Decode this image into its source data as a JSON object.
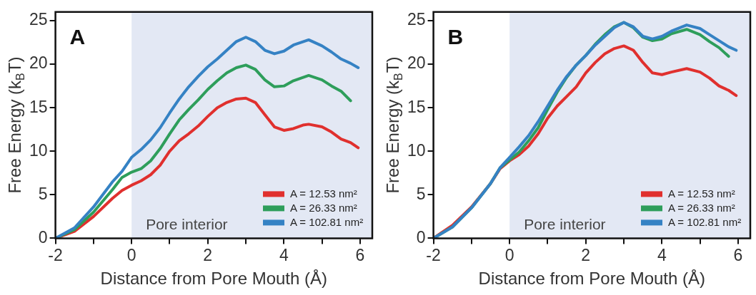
{
  "chart_data": [
    {
      "type": "line",
      "xlabel": "Distance from Pore Mouth (Å)",
      "ylabel": "Free Energy (k$_{B}$T)",
      "annotations": [
        "A"
      ],
      "xlim": [
        -2,
        6.32
      ],
      "ylim": [
        0,
        26
      ],
      "xticks": [
        -2,
        {
          "value": -1,
          "label": null
        },
        0,
        {
          "value": 1,
          "label": null
        },
        2,
        {
          "value": 3,
          "label": null
        },
        4,
        {
          "value": 5,
          "label": null
        },
        6
      ],
      "yticks": [
        0,
        5,
        10,
        15,
        20,
        25
      ],
      "grid": false,
      "legend": "bottom right",
      "marker": "none",
      "line_style": "solid",
      "bands": [
        {
          "axis": "x",
          "from": 0,
          "to": 6.32,
          "label": "Pore interior",
          "color": "#e3e8f4"
        }
      ],
      "series": [
        {
          "name": "A = 12.53 nm²",
          "color": "#e0302e",
          "x": [
            -2,
            -1.5,
            -1,
            -0.5,
            -0.25,
            0,
            0.25,
            0.5,
            0.75,
            1,
            1.25,
            1.5,
            1.75,
            2,
            2.25,
            2.5,
            2.75,
            3,
            3.25,
            3.5,
            3.75,
            4,
            4.25,
            4.5,
            4.65,
            5,
            5.25,
            5.5,
            5.75,
            5.95
          ],
          "values": [
            0,
            0.8,
            2.5,
            4.6,
            5.5,
            6.1,
            6.6,
            7.3,
            8.4,
            10,
            11.2,
            12,
            12.9,
            14,
            15,
            15.6,
            16,
            16.1,
            15.6,
            14.2,
            12.8,
            12.4,
            12.6,
            13,
            13.1,
            12.8,
            12.2,
            11.4,
            11,
            10.4
          ]
        },
        {
          "name": "A = 26.33 nm²",
          "color": "#2e9e5b",
          "x": [
            -2,
            -1.5,
            -1,
            -0.5,
            -0.25,
            0,
            0.25,
            0.5,
            0.75,
            1,
            1.25,
            1.5,
            1.75,
            2,
            2.25,
            2.5,
            2.75,
            3,
            3.25,
            3.5,
            3.75,
            4,
            4.25,
            4.65,
            5,
            5.25,
            5.5,
            5.75
          ],
          "values": [
            0,
            1,
            3,
            5.6,
            7,
            7.6,
            8,
            8.9,
            10.3,
            12,
            13.6,
            14.8,
            15.9,
            17.1,
            18.1,
            19,
            19.6,
            19.9,
            19.4,
            18.2,
            17.4,
            17.5,
            18.1,
            18.7,
            18.2,
            17.5,
            16.9,
            15.8
          ]
        },
        {
          "name": "A = 102.81 nm²",
          "color": "#3582c4",
          "x": [
            -2,
            -1.5,
            -1,
            -0.5,
            -0.25,
            0,
            0.25,
            0.5,
            0.75,
            1,
            1.25,
            1.5,
            1.75,
            2,
            2.25,
            2.5,
            2.75,
            3,
            3.25,
            3.5,
            3.75,
            4,
            4.25,
            4.65,
            5,
            5.25,
            5.5,
            5.75,
            5.95
          ],
          "values": [
            0,
            1.2,
            3.6,
            6.5,
            7.7,
            9.3,
            10.2,
            11.3,
            12.7,
            14.4,
            16,
            17.4,
            18.6,
            19.7,
            20.6,
            21.6,
            22.6,
            23.1,
            22.6,
            21.6,
            21.2,
            21.5,
            22.2,
            22.8,
            22.1,
            21.4,
            20.6,
            20.1,
            19.6
          ]
        }
      ]
    },
    {
      "type": "line",
      "xlabel": "Distance from Pore Mouth (Å)",
      "ylabel": "Free Energy (k$_{B}$T)",
      "annotations": [
        "B"
      ],
      "xlim": [
        -2,
        6.32
      ],
      "ylim": [
        0,
        26
      ],
      "xticks": [
        -2,
        {
          "value": -1,
          "label": null
        },
        0,
        {
          "value": 1,
          "label": null
        },
        2,
        {
          "value": 3,
          "label": null
        },
        4,
        {
          "value": 5,
          "label": null
        },
        6
      ],
      "yticks": [
        0,
        5,
        10,
        15,
        20,
        25
      ],
      "grid": false,
      "legend": "bottom right",
      "marker": "none",
      "line_style": "solid",
      "bands": [
        {
          "axis": "x",
          "from": 0,
          "to": 6.32,
          "label": "Pore interior",
          "color": "#e3e8f4"
        }
      ],
      "series": [
        {
          "name": "A = 12.53 nm²",
          "color": "#e0302e",
          "x": [
            -2,
            -1.5,
            -1,
            -0.5,
            -0.25,
            0,
            0.25,
            0.5,
            0.75,
            1,
            1.25,
            1.5,
            1.75,
            2,
            2.25,
            2.5,
            2.75,
            3,
            3.25,
            3.5,
            3.75,
            4,
            4.25,
            4.65,
            5,
            5.25,
            5.5,
            5.75,
            5.95
          ],
          "values": [
            0,
            1.5,
            3.6,
            6.3,
            8,
            8.9,
            9.6,
            10.6,
            12,
            13.8,
            15.2,
            16.3,
            17.4,
            19,
            20.2,
            21.2,
            21.8,
            22.1,
            21.6,
            20.2,
            19,
            18.8,
            19.1,
            19.5,
            19.1,
            18.4,
            17.5,
            17,
            16.4
          ]
        },
        {
          "name": "A = 26.33 nm²",
          "color": "#2e9e5b",
          "x": [
            -2,
            -1.5,
            -1,
            -0.5,
            -0.25,
            0,
            0.25,
            0.5,
            0.75,
            1,
            1.25,
            1.5,
            1.75,
            2,
            2.25,
            2.5,
            2.75,
            3,
            3.25,
            3.5,
            3.75,
            4,
            4.25,
            4.65,
            5,
            5.25,
            5.5,
            5.75
          ],
          "values": [
            0,
            1.3,
            3.5,
            6.3,
            8.1,
            9,
            9.9,
            11.2,
            12.7,
            14.8,
            16.8,
            18.5,
            19.9,
            21,
            22.3,
            23.4,
            24.3,
            24.8,
            24.2,
            23.1,
            22.7,
            22.9,
            23.5,
            24,
            23.4,
            22.6,
            21.9,
            20.9
          ]
        },
        {
          "name": "A = 102.81 nm²",
          "color": "#3582c4",
          "x": [
            -2,
            -1.5,
            -1,
            -0.5,
            -0.25,
            0,
            0.25,
            0.5,
            0.75,
            1,
            1.25,
            1.5,
            1.75,
            2,
            2.25,
            2.5,
            2.75,
            3,
            3.25,
            3.5,
            3.75,
            4,
            4.25,
            4.65,
            5,
            5.25,
            5.5,
            5.75,
            5.95
          ],
          "values": [
            0,
            1.3,
            3.5,
            6.3,
            8.1,
            9.3,
            10.5,
            11.8,
            13.4,
            15.2,
            17,
            18.6,
            19.9,
            21,
            22.2,
            23.2,
            24.2,
            24.8,
            24.3,
            23.2,
            22.9,
            23.2,
            23.8,
            24.5,
            24.1,
            23.4,
            22.7,
            22,
            21.6
          ]
        }
      ]
    }
  ]
}
